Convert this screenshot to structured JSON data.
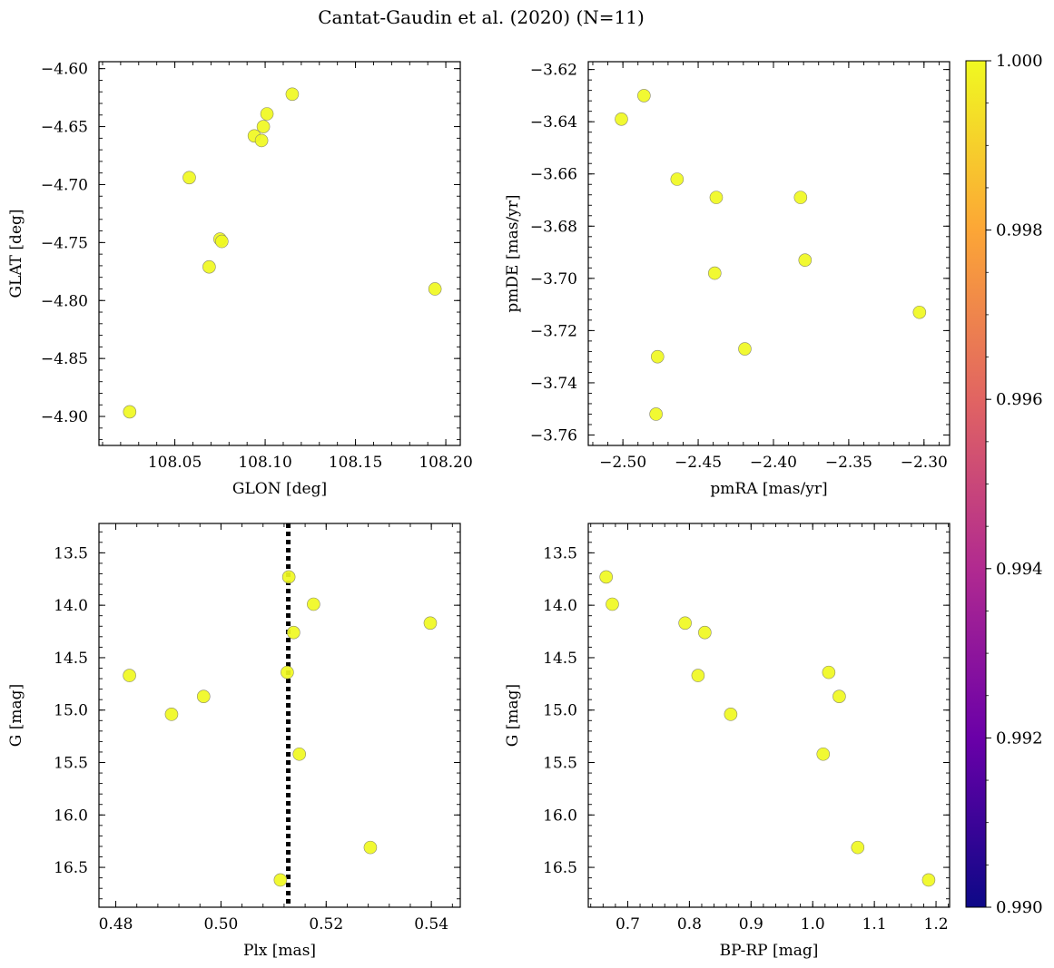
{
  "figure": {
    "title": "Cantat-Gaudin et al. (2020) (N=11)",
    "marker_color": "#f0f921",
    "marker_edge": "#8a8a6a",
    "colormap_stops": [
      "#0d0887",
      "#6a00a8",
      "#b12a90",
      "#e16462",
      "#fca636",
      "#f0f921"
    ]
  },
  "colorbar": {
    "range": [
      0.99,
      1.0
    ],
    "ticks": [
      "0.990",
      "0.992",
      "0.994",
      "0.996",
      "0.998",
      "1.000"
    ]
  },
  "chart_data": [
    {
      "type": "scatter",
      "xlabel": "GLON [deg]",
      "ylabel": "GLAT [deg]",
      "xlim": [
        108.008,
        108.208
      ],
      "ylim": [
        -4.925,
        -4.594
      ],
      "y_inverted": false,
      "xticks": [
        "108.05",
        "108.10",
        "108.15",
        "108.20"
      ],
      "yticks": [
        "-4.60",
        "-4.65",
        "-4.70",
        "-4.75",
        "-4.80",
        "-4.85",
        "-4.90"
      ],
      "x": [
        108.115,
        108.101,
        108.099,
        108.094,
        108.098,
        108.058,
        108.075,
        108.076,
        108.069,
        108.194,
        108.025
      ],
      "y": [
        -4.622,
        -4.639,
        -4.65,
        -4.658,
        -4.662,
        -4.694,
        -4.747,
        -4.749,
        -4.771,
        -4.79,
        -4.896
      ]
    },
    {
      "type": "scatter",
      "xlabel": "pmRA [mas/yr]",
      "ylabel": "pmDE [mas/yr]",
      "xlim": [
        -2.523,
        -2.283
      ],
      "ylim": [
        -3.764,
        -3.617
      ],
      "y_inverted": false,
      "xticks": [
        "-2.50",
        "-2.45",
        "-2.40",
        "-2.35",
        "-2.30"
      ],
      "yticks": [
        "-3.62",
        "-3.64",
        "-3.66",
        "-3.68",
        "-3.70",
        "-3.72",
        "-3.74",
        "-3.76"
      ],
      "x": [
        -2.486,
        -2.501,
        -2.464,
        -2.438,
        -2.382,
        -2.439,
        -2.379,
        -2.303,
        -2.419,
        -2.477,
        -2.478
      ],
      "y": [
        -3.63,
        -3.639,
        -3.662,
        -3.669,
        -3.669,
        -3.698,
        -3.693,
        -3.713,
        -3.727,
        -3.73,
        -3.752
      ]
    },
    {
      "type": "scatter",
      "xlabel": "Plx [mas]",
      "ylabel": "G [mag]",
      "xlim": [
        0.4768,
        0.5455
      ],
      "ylim": [
        13.22,
        16.88
      ],
      "y_inverted": true,
      "vline": 0.5128,
      "xticks": [
        "0.48",
        "0.50",
        "0.52",
        "0.54"
      ],
      "yticks": [
        "13.5",
        "14.0",
        "14.5",
        "15.0",
        "15.5",
        "16.0",
        "16.5"
      ],
      "x": [
        0.5129,
        0.5176,
        0.5138,
        0.5398,
        0.4826,
        0.5126,
        0.4967,
        0.4906,
        0.5149,
        0.5284,
        0.5113
      ],
      "y": [
        13.73,
        13.99,
        14.26,
        14.17,
        14.67,
        14.64,
        14.87,
        15.04,
        15.42,
        16.31,
        16.62
      ]
    },
    {
      "type": "scatter",
      "xlabel": "BP-RP [mag]",
      "ylabel": "G [mag]",
      "xlim": [
        0.636,
        1.222
      ],
      "ylim": [
        13.22,
        16.88
      ],
      "y_inverted": true,
      "xticks": [
        "0.7",
        "0.8",
        "0.9",
        "1.0",
        "1.1",
        "1.2"
      ],
      "yticks": [
        "13.5",
        "14.0",
        "14.5",
        "15.0",
        "15.5",
        "16.0",
        "16.5"
      ],
      "x": [
        0.665,
        0.675,
        0.793,
        0.825,
        0.814,
        1.026,
        1.043,
        0.867,
        1.017,
        1.073,
        1.188
      ],
      "y": [
        13.73,
        13.99,
        14.17,
        14.26,
        14.67,
        14.64,
        14.87,
        15.04,
        15.42,
        16.31,
        16.62
      ]
    }
  ]
}
